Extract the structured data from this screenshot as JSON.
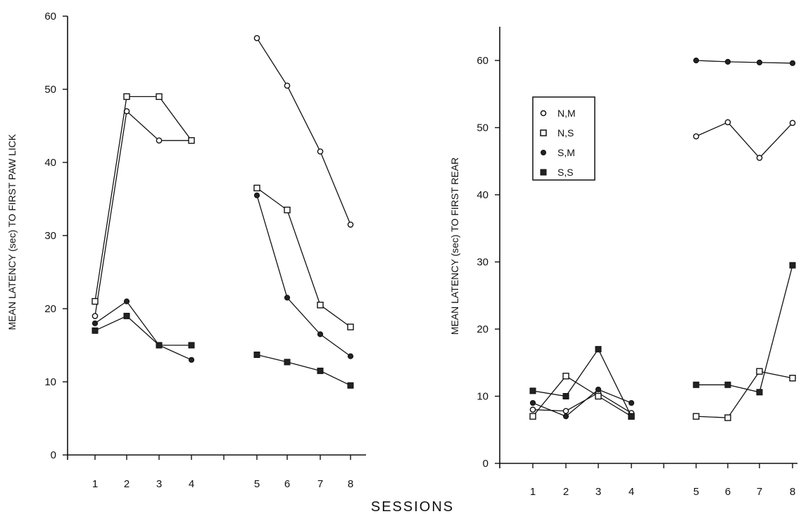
{
  "x_title": "SESSIONS",
  "legend": [
    {
      "label": "N,M",
      "marker": "open-circle"
    },
    {
      "label": "N,S",
      "marker": "open-square"
    },
    {
      "label": "S,M",
      "marker": "filled-circle"
    },
    {
      "label": "S,S",
      "marker": "filled-square"
    }
  ],
  "colors": {
    "ink": "#111111",
    "paper": "#ffffff",
    "marker_fill": "#222222"
  },
  "chart_data": [
    {
      "type": "line",
      "title": "",
      "ylabel": "MEAN LATENCY (sec) TO FIRST PAW LICK",
      "xlabel": "SESSIONS",
      "x": [
        1,
        2,
        3,
        4,
        5,
        6,
        7,
        8
      ],
      "x_ticks": [
        "1",
        "2",
        "3",
        "4",
        "5",
        "6",
        "7",
        "8"
      ],
      "y_ticks": [
        "0",
        "10",
        "20",
        "30",
        "40",
        "50",
        "60"
      ],
      "ylim": [
        0,
        60
      ],
      "grid": false,
      "series": [
        {
          "name": "N,M",
          "marker": "open-circle",
          "values": [
            19,
            47,
            43,
            43,
            57,
            50.5,
            41.5,
            31.5
          ]
        },
        {
          "name": "N,S",
          "marker": "open-square",
          "values": [
            21,
            49,
            49,
            43,
            36.5,
            33.5,
            20.5,
            17.5
          ]
        },
        {
          "name": "S,M",
          "marker": "filled-circle",
          "values": [
            18,
            21,
            15,
            13,
            35.5,
            21.5,
            16.5,
            13.5
          ]
        },
        {
          "name": "S,S",
          "marker": "filled-square",
          "values": [
            17,
            19,
            15,
            15,
            13.7,
            12.7,
            11.5,
            9.5
          ]
        }
      ]
    },
    {
      "type": "line",
      "title": "",
      "ylabel": "MEAN LATENCY (sec) TO FIRST REAR",
      "xlabel": "SESSIONS",
      "x": [
        1,
        2,
        3,
        4,
        5,
        6,
        7,
        8
      ],
      "x_ticks": [
        "1",
        "2",
        "3",
        "4",
        "5",
        "6",
        "7",
        "8"
      ],
      "y_ticks": [
        "0",
        "10",
        "20",
        "30",
        "40",
        "50",
        "60"
      ],
      "ylim": [
        0,
        65
      ],
      "grid": false,
      "legend_position": "top-left",
      "series": [
        {
          "name": "N,M",
          "marker": "open-circle",
          "values": [
            8,
            7.8,
            10.5,
            7.5,
            48.7,
            50.8,
            45.5,
            50.7
          ]
        },
        {
          "name": "N,S",
          "marker": "open-square",
          "values": [
            7,
            13,
            10,
            7,
            7,
            6.8,
            13.7,
            12.7
          ]
        },
        {
          "name": "S,M",
          "marker": "filled-circle",
          "values": [
            9,
            7,
            11,
            9,
            60,
            59.8,
            59.7,
            59.6
          ]
        },
        {
          "name": "S,S",
          "marker": "filled-square",
          "values": [
            10.8,
            10,
            17,
            7,
            11.7,
            11.7,
            10.6,
            29.5
          ]
        }
      ]
    }
  ]
}
